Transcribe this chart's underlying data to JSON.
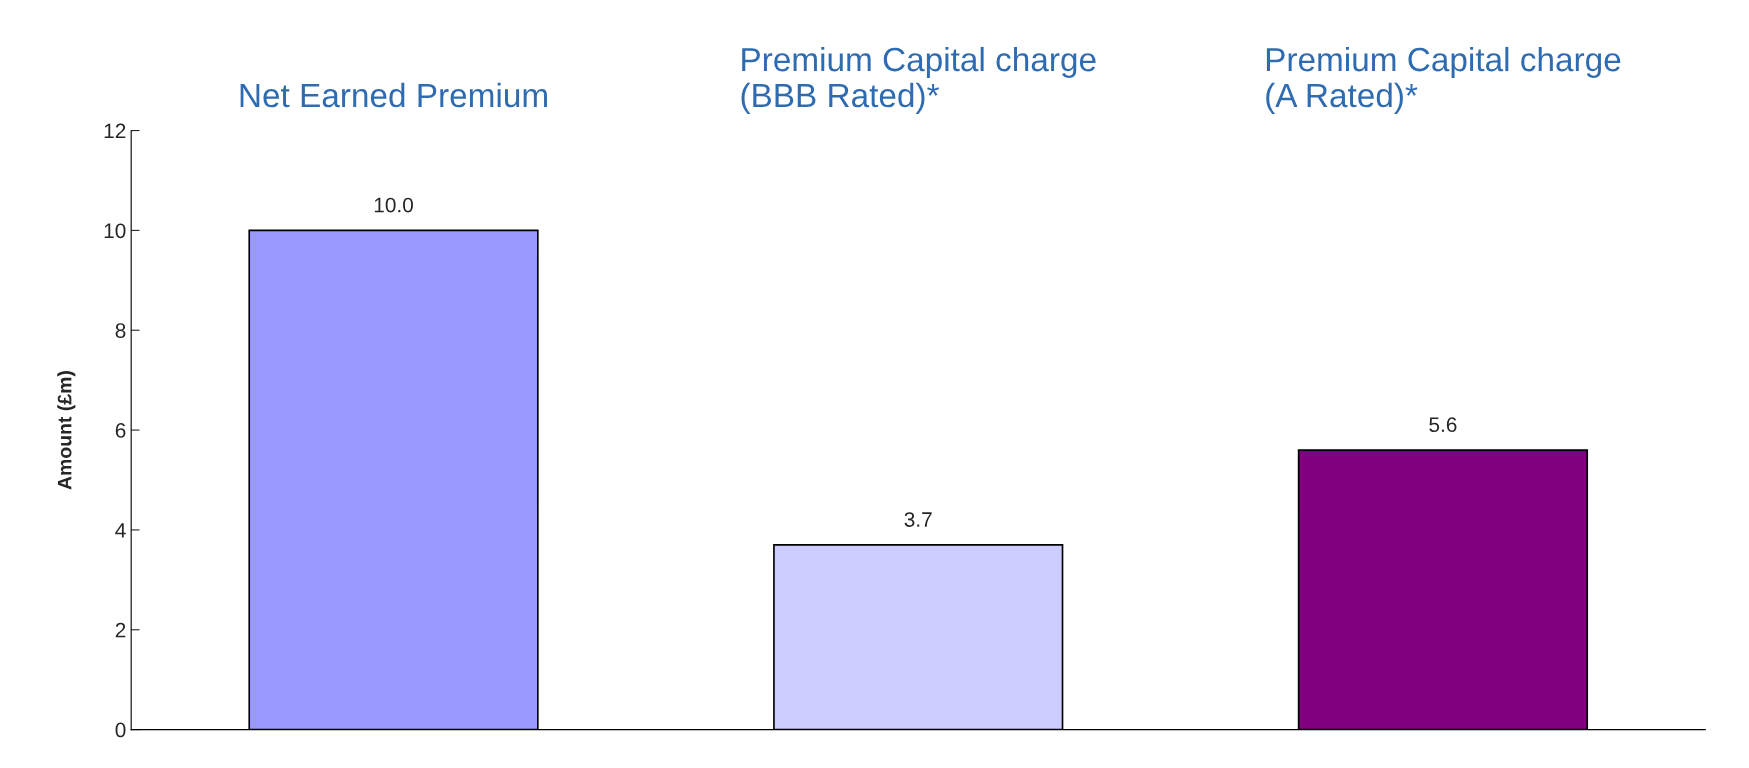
{
  "chart_data": {
    "type": "bar",
    "ylabel": "Amount (£m)",
    "categories": [
      "Net Earned Premium",
      "Premium Capital charge\n(BBB Rated)*",
      "Premium Capital charge\n(A Rated)*"
    ],
    "values": [
      10.0,
      3.7,
      5.6
    ],
    "colors": [
      "#9999ff",
      "#ccccff",
      "#800080"
    ],
    "value_labels": [
      "10.0",
      "3.7",
      "5.6"
    ],
    "ylim": [
      0,
      12
    ],
    "yticks": [
      0,
      2,
      4,
      6,
      8,
      10,
      12
    ],
    "grid": false
  }
}
